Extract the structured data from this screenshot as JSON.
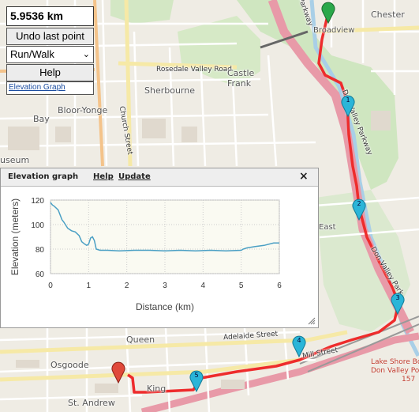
{
  "controls": {
    "distance": "5.9536 km",
    "undo_label": "Undo last point",
    "mode_value": "Run/Walk",
    "help_label": "Help",
    "elevation_link": "Elevation Graph"
  },
  "map_labels": {
    "chester": "Chester",
    "broadview": "Broadview",
    "parkway": "Parkway",
    "rosedale": "Rosedale Valley Road",
    "castle_frank": "Castle\nFrank",
    "sherbourne": "Sherbourne",
    "bloor_yonge": "Bloor-Yonge",
    "bay": "Bay",
    "museum": "useum",
    "church_street": "Church Street",
    "don_valley_parkway": "Don Valley Parkway",
    "don_valley_park2": "Don Valley Park",
    "east": "East",
    "queen": "Queen",
    "adelaide": "Adelaide Street",
    "osgoode": "Osgoode",
    "king": "King",
    "st_andrew": "St. Andrew",
    "lake_shore": "Lake Shore Bo",
    "don_valley_po": "Don Valley Po",
    "num157": "157",
    "mill_street": "Mill Street"
  },
  "markers": [
    "1",
    "2",
    "3",
    "4",
    "5"
  ],
  "colors": {
    "route": "#ee2c2c",
    "marker_cyan": "#2ab5d8",
    "marker_start": "#2aa84a",
    "marker_end": "#e0493a"
  },
  "panel": {
    "title": "Elevation graph",
    "help": "Help",
    "update": "Update",
    "close": "×"
  },
  "chart_data": {
    "type": "line",
    "xlabel": "Distance (km)",
    "ylabel": "Elevation (meters)",
    "xlim": [
      0,
      6
    ],
    "ylim": [
      60,
      120
    ],
    "xticks": [
      0,
      1,
      2,
      3,
      4,
      5,
      6
    ],
    "yticks": [
      60,
      80,
      100,
      120
    ],
    "grid": true,
    "color": "#4a9fc4",
    "x": [
      0,
      0.05,
      0.1,
      0.2,
      0.3,
      0.35,
      0.45,
      0.55,
      0.65,
      0.75,
      0.82,
      0.9,
      0.95,
      1.0,
      1.05,
      1.1,
      1.15,
      1.2,
      1.3,
      1.5,
      1.8,
      2.2,
      2.6,
      3.0,
      3.4,
      3.8,
      4.2,
      4.6,
      5.0,
      5.05,
      5.15,
      5.35,
      5.6,
      5.85,
      6.0
    ],
    "y": [
      118,
      116,
      115,
      112,
      104,
      102,
      97,
      95,
      94,
      91,
      86,
      84,
      83,
      84,
      89,
      90,
      87,
      80,
      79,
      79,
      78.5,
      79,
      79,
      78.5,
      79,
      78.5,
      79,
      78.5,
      79,
      80,
      81,
      82,
      83,
      85,
      85
    ]
  }
}
